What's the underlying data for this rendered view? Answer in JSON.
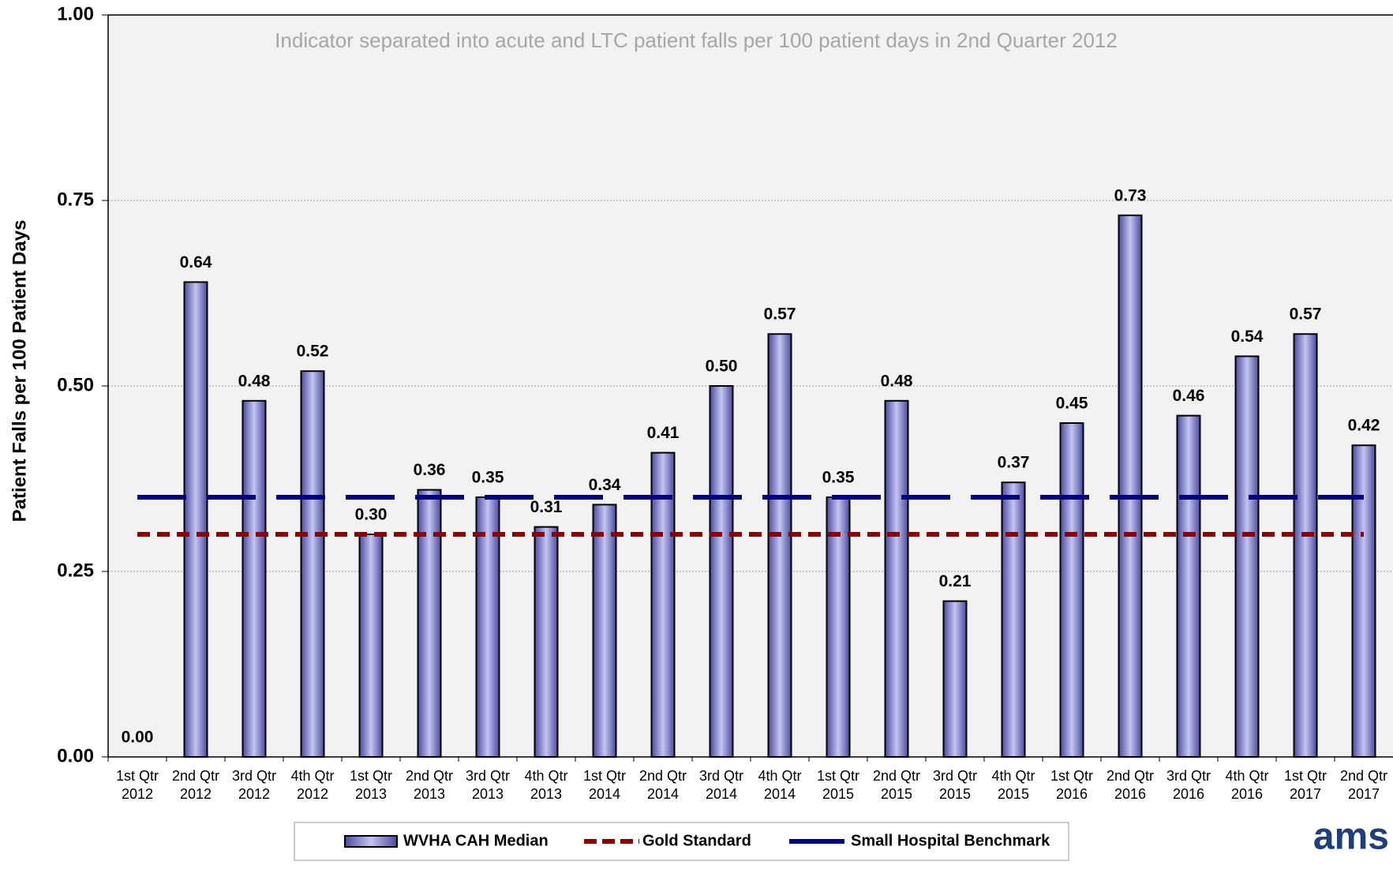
{
  "chart_data": {
    "type": "bar",
    "annotation": "Indicator separated into acute and LTC patient falls per 100 patient days in 2nd Quarter 2012",
    "y_label": "Patient Falls per 100 Patient Days",
    "categories": [
      "1st Qtr 2012",
      "2nd Qtr 2012",
      "3rd Qtr 2012",
      "4th Qtr 2012",
      "1st Qtr 2013",
      "2nd Qtr 2013",
      "3rd Qtr 2013",
      "4th Qtr 2013",
      "1st Qtr 2014",
      "2nd Qtr 2014",
      "3rd Qtr 2014",
      "4th Qtr 2014",
      "1st Qtr 2015",
      "2nd Qtr 2015",
      "3rd Qtr 2015",
      "4th Qtr 2015",
      "1st Qtr 2016",
      "2nd Qtr 2016",
      "3rd Qtr 2016",
      "4th Qtr 2016",
      "1st Qtr 2017",
      "2nd Qtr 2017"
    ],
    "series": [
      {
        "name": "WVHA CAH Median",
        "color": "#7b7bd6",
        "values": [
          0,
          0.64,
          0.48,
          0.52,
          0.3,
          0.36,
          0.35,
          0.31,
          0.34,
          0.41,
          0.5,
          0.57,
          0.35,
          0.48,
          0.21,
          0.37,
          0.45,
          0.73,
          0.46,
          0.54,
          0.57,
          0.42
        ],
        "value_labels": [
          "0.00",
          "0.64",
          "0.48",
          "0.52",
          "0.30",
          "0.36",
          "0.35",
          "0.31",
          "0.34",
          "0.41",
          "0.50",
          "0.57",
          "0.35",
          "0.48",
          "0.21",
          "0.37",
          "0.45",
          "0.73",
          "0.46",
          "0.54",
          "0.57",
          "0.42"
        ]
      },
      {
        "name": "Gold Standard",
        "color": "#8b0000",
        "type": "line",
        "values": [
          0.3,
          0.3,
          0.3,
          0.3,
          0.3,
          0.3,
          0.3,
          0.3,
          0.3,
          0.3,
          0.3,
          0.3,
          0.3,
          0.3,
          0.3,
          0.3,
          0.3,
          0.3,
          0.3,
          0.3,
          0.3,
          0.3
        ]
      },
      {
        "name": "Small Hospital Benchmark",
        "color": "#000080",
        "type": "line",
        "values": [
          0.35,
          0.35,
          0.35,
          0.35,
          0.35,
          0.35,
          0.35,
          0.35,
          0.35,
          0.35,
          0.35,
          0.35,
          0.35,
          0.35,
          0.35,
          0.35,
          0.35,
          0.35,
          0.35,
          0.35,
          0.35,
          0.35
        ]
      }
    ],
    "ylim": [
      0,
      1
    ],
    "yticks": [
      {
        "value": 0,
        "label": "0.00"
      },
      {
        "value": 0.25,
        "label": "0.25"
      },
      {
        "value": 0.5,
        "label": "0.50"
      },
      {
        "value": 0.75,
        "label": "0.75"
      },
      {
        "value": 1,
        "label": "1.00"
      }
    ],
    "grid": true,
    "legend": "bottom",
    "logo": "ams"
  }
}
